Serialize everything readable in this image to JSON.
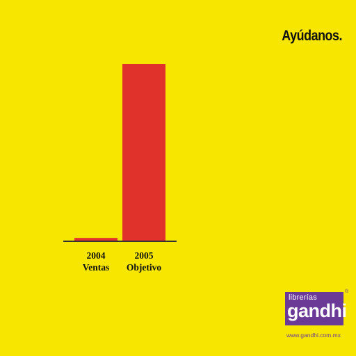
{
  "headline": "Ayúdanos.",
  "chart_data": {
    "type": "bar",
    "categories": [
      {
        "year": "2004",
        "label": "Ventas"
      },
      {
        "year": "2005",
        "label": "Objetivo"
      }
    ],
    "values": [
      1.5,
      100
    ],
    "colors": [
      "#e0322b",
      "#e0322b"
    ],
    "axis_color": "#333333",
    "title": "",
    "xlabel": "",
    "ylabel": "",
    "ylim": [
      0,
      100
    ],
    "grid": false
  },
  "logo": {
    "top_text": "librerías",
    "main_text": "gandhi",
    "registered": "®",
    "color": "#6b3a96"
  },
  "url": "www.gandhi.com.mx"
}
